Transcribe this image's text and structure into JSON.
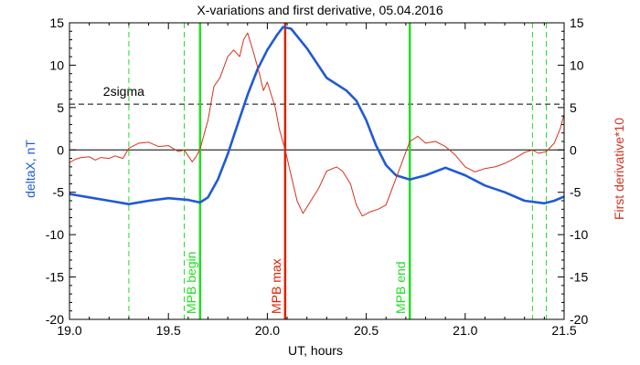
{
  "chart_data": {
    "type": "line",
    "title": "X-variations and first derivative, 05.04.2016",
    "xlabel": "UT, hours",
    "ylabel_left": "deltaX, nT",
    "ylabel_right": "First derivative*10",
    "xlim": [
      19.0,
      21.5
    ],
    "ylim": [
      -20,
      15
    ],
    "x_ticks": [
      "19.0",
      "19.5",
      "20.0",
      "20.5",
      "21.0",
      "21.5"
    ],
    "x_tick_values": [
      19.0,
      19.5,
      20.0,
      20.5,
      21.0,
      21.5
    ],
    "y_ticks": [
      "15",
      "10",
      "5",
      "0",
      "-5",
      "-10",
      "-15",
      "-20"
    ],
    "y_tick_values": [
      15,
      10,
      5,
      0,
      -5,
      -10,
      -15,
      -20
    ],
    "threshold": {
      "label": "2sigma",
      "value": 5.4
    },
    "zero_line": 0,
    "colors": {
      "deltaX": "#1f5ad6",
      "derivative": "#d4321e",
      "mpb_edges": "#22dd22",
      "mpb_max": "#dd2200",
      "axes": "#000000"
    },
    "vertical_markers": [
      {
        "x": 19.3,
        "style": "dashed",
        "color": "#22dd22",
        "label": ""
      },
      {
        "x": 19.58,
        "style": "dashed",
        "color": "#22dd22",
        "label": ""
      },
      {
        "x": 19.66,
        "style": "solid",
        "color": "#22dd22",
        "label": "MPB begin"
      },
      {
        "x": 20.09,
        "style": "solid",
        "color": "#dd2200",
        "label": "MPB max"
      },
      {
        "x": 20.72,
        "style": "solid",
        "color": "#22dd22",
        "label": "MPB end"
      },
      {
        "x": 21.34,
        "style": "dashed",
        "color": "#22dd22",
        "label": ""
      },
      {
        "x": 21.41,
        "style": "dashed",
        "color": "#22dd22",
        "label": ""
      }
    ],
    "series": [
      {
        "key": "deltaX",
        "axis": "left",
        "points": [
          [
            19.0,
            -5.2
          ],
          [
            19.1,
            -5.6
          ],
          [
            19.2,
            -6.0
          ],
          [
            19.3,
            -6.4
          ],
          [
            19.4,
            -6.0
          ],
          [
            19.5,
            -5.7
          ],
          [
            19.6,
            -5.9
          ],
          [
            19.66,
            -6.2
          ],
          [
            19.7,
            -5.6
          ],
          [
            19.75,
            -3.5
          ],
          [
            19.8,
            -0.5
          ],
          [
            19.85,
            3.0
          ],
          [
            19.9,
            6.5
          ],
          [
            19.95,
            9.5
          ],
          [
            20.0,
            11.8
          ],
          [
            20.05,
            13.6
          ],
          [
            20.08,
            14.5
          ],
          [
            20.12,
            14.3
          ],
          [
            20.2,
            12.0
          ],
          [
            20.3,
            8.5
          ],
          [
            20.4,
            7.0
          ],
          [
            20.45,
            5.8
          ],
          [
            20.5,
            3.5
          ],
          [
            20.55,
            0.5
          ],
          [
            20.6,
            -1.8
          ],
          [
            20.65,
            -3.0
          ],
          [
            20.72,
            -3.5
          ],
          [
            20.8,
            -3.0
          ],
          [
            20.9,
            -2.1
          ],
          [
            21.0,
            -3.0
          ],
          [
            21.1,
            -4.2
          ],
          [
            21.2,
            -5.0
          ],
          [
            21.3,
            -6.0
          ],
          [
            21.4,
            -6.3
          ],
          [
            21.45,
            -6.0
          ],
          [
            21.5,
            -5.5
          ]
        ]
      },
      {
        "key": "derivative",
        "axis": "left",
        "points": [
          [
            19.0,
            -1.5
          ],
          [
            19.03,
            -1.1
          ],
          [
            19.06,
            -0.9
          ],
          [
            19.1,
            -0.8
          ],
          [
            19.13,
            -1.2
          ],
          [
            19.16,
            -0.9
          ],
          [
            19.2,
            -1.0
          ],
          [
            19.23,
            -0.7
          ],
          [
            19.27,
            -1.0
          ],
          [
            19.3,
            0.2
          ],
          [
            19.35,
            0.8
          ],
          [
            19.4,
            0.9
          ],
          [
            19.45,
            0.4
          ],
          [
            19.5,
            0.5
          ],
          [
            19.55,
            -0.2
          ],
          [
            19.58,
            0.0
          ],
          [
            19.62,
            -1.4
          ],
          [
            19.64,
            -0.8
          ],
          [
            19.66,
            0.1
          ],
          [
            19.7,
            3.5
          ],
          [
            19.73,
            7.5
          ],
          [
            19.76,
            8.5
          ],
          [
            19.8,
            11.0
          ],
          [
            19.83,
            11.8
          ],
          [
            19.86,
            11.0
          ],
          [
            19.88,
            13.0
          ],
          [
            19.9,
            13.8
          ],
          [
            19.93,
            11.5
          ],
          [
            19.96,
            9.0
          ],
          [
            19.98,
            7.0
          ],
          [
            20.0,
            8.0
          ],
          [
            20.02,
            6.5
          ],
          [
            20.04,
            5.0
          ],
          [
            20.06,
            2.5
          ],
          [
            20.09,
            0.0
          ],
          [
            20.12,
            -3.0
          ],
          [
            20.15,
            -6.0
          ],
          [
            20.18,
            -7.5
          ],
          [
            20.22,
            -6.0
          ],
          [
            20.26,
            -4.5
          ],
          [
            20.3,
            -2.5
          ],
          [
            20.35,
            -2.0
          ],
          [
            20.38,
            -2.5
          ],
          [
            20.42,
            -4.0
          ],
          [
            20.45,
            -6.5
          ],
          [
            20.48,
            -7.8
          ],
          [
            20.52,
            -7.3
          ],
          [
            20.56,
            -7.0
          ],
          [
            20.6,
            -6.5
          ],
          [
            20.64,
            -4.0
          ],
          [
            20.68,
            -1.5
          ],
          [
            20.72,
            1.0
          ],
          [
            20.76,
            1.6
          ],
          [
            20.8,
            0.8
          ],
          [
            20.85,
            1.0
          ],
          [
            20.9,
            0.4
          ],
          [
            20.95,
            -0.6
          ],
          [
            21.0,
            -2.0
          ],
          [
            21.05,
            -2.6
          ],
          [
            21.1,
            -2.2
          ],
          [
            21.15,
            -2.0
          ],
          [
            21.2,
            -1.6
          ],
          [
            21.25,
            -1.0
          ],
          [
            21.3,
            -0.3
          ],
          [
            21.34,
            0.0
          ],
          [
            21.37,
            -0.4
          ],
          [
            21.41,
            -0.2
          ],
          [
            21.45,
            0.8
          ],
          [
            21.48,
            2.5
          ],
          [
            21.5,
            4.2
          ]
        ]
      }
    ]
  }
}
